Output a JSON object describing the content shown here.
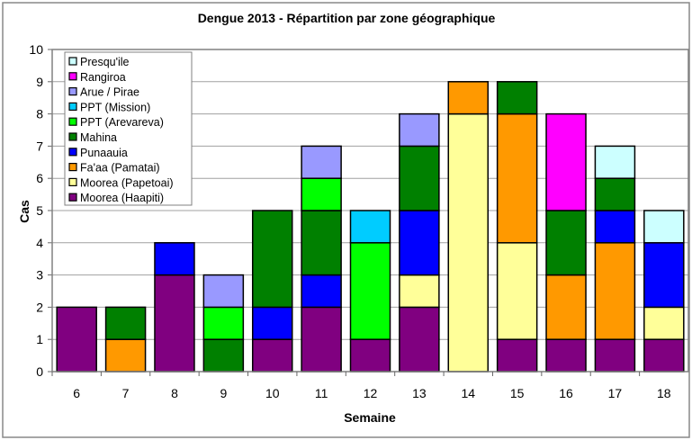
{
  "chart_data": {
    "type": "bar",
    "stacked": true,
    "title": "Dengue 2013 - Répartition par zone géographique",
    "xlabel": "Semaine",
    "ylabel": "Cas",
    "ylim": [
      0,
      10
    ],
    "yticks": [
      0,
      1,
      2,
      3,
      4,
      5,
      6,
      7,
      8,
      9,
      10
    ],
    "grid": true,
    "legend_position": "top-left",
    "categories": [
      "6",
      "7",
      "8",
      "9",
      "10",
      "11",
      "12",
      "13",
      "14",
      "15",
      "16",
      "17",
      "18"
    ],
    "series": [
      {
        "name": "Moorea (Haapiti)",
        "color": "#800080",
        "values": [
          2,
          0,
          3,
          0,
          1,
          2,
          1,
          2,
          0,
          1,
          1,
          1,
          1
        ]
      },
      {
        "name": "Moorea (Papetoai)",
        "color": "#FFFF99",
        "values": [
          0,
          0,
          0,
          0,
          0,
          0,
          0,
          1,
          8,
          3,
          0,
          0,
          1
        ]
      },
      {
        "name": "Fa'aa (Pamatai)",
        "color": "#FF9900",
        "values": [
          0,
          1,
          0,
          0,
          0,
          0,
          0,
          0,
          1,
          4,
          2,
          3,
          0
        ]
      },
      {
        "name": "Punaauia",
        "color": "#0000FF",
        "values": [
          0,
          0,
          1,
          0,
          1,
          1,
          0,
          2,
          0,
          0,
          0,
          1,
          2
        ]
      },
      {
        "name": "Mahina",
        "color": "#008000",
        "values": [
          0,
          1,
          0,
          1,
          3,
          2,
          0,
          2,
          0,
          1,
          2,
          1,
          0
        ]
      },
      {
        "name": "PPT (Arevareva)",
        "color": "#00FF00",
        "values": [
          0,
          0,
          0,
          1,
          0,
          1,
          3,
          0,
          0,
          0,
          0,
          0,
          0
        ]
      },
      {
        "name": "PPT (Mission)",
        "color": "#00CCFF",
        "values": [
          0,
          0,
          0,
          0,
          0,
          0,
          1,
          0,
          0,
          0,
          0,
          0,
          0
        ]
      },
      {
        "name": "Arue / Pirae",
        "color": "#9999FF",
        "values": [
          0,
          0,
          0,
          1,
          0,
          1,
          0,
          1,
          0,
          0,
          0,
          0,
          0
        ]
      },
      {
        "name": "Rangiroa",
        "color": "#FF00FF",
        "values": [
          0,
          0,
          0,
          0,
          0,
          0,
          0,
          0,
          0,
          0,
          3,
          0,
          0
        ]
      },
      {
        "name": "Presqu'ile",
        "color": "#CCFFFF",
        "values": [
          0,
          0,
          0,
          0,
          0,
          0,
          0,
          0,
          0,
          0,
          0,
          1,
          1
        ]
      }
    ]
  }
}
